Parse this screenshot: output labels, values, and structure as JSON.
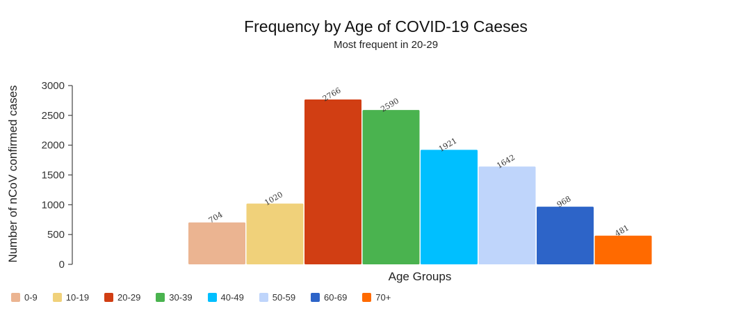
{
  "chart_data": {
    "type": "bar",
    "title": "Frequency by Age of COVID-19 Caeses",
    "subtitle": "Most frequent in 20-29",
    "xlabel": "Age Groups",
    "ylabel": "Number of nCoV confirmed cases",
    "ylim": [
      0,
      3000
    ],
    "yticks": [
      0,
      500,
      1000,
      1500,
      2000,
      2500,
      3000
    ],
    "categories": [
      "0-9",
      "10-19",
      "20-29",
      "30-39",
      "40-49",
      "50-59",
      "60-69",
      "70+"
    ],
    "values": [
      704,
      1020,
      2766,
      2590,
      1921,
      1642,
      968,
      481
    ],
    "colors": [
      "#ebb491",
      "#f0d17a",
      "#d13e13",
      "#4ab34f",
      "#00bfff",
      "#bfd5fb",
      "#2d64c8",
      "#ff6a00"
    ],
    "legend_position": "bottom-left"
  }
}
